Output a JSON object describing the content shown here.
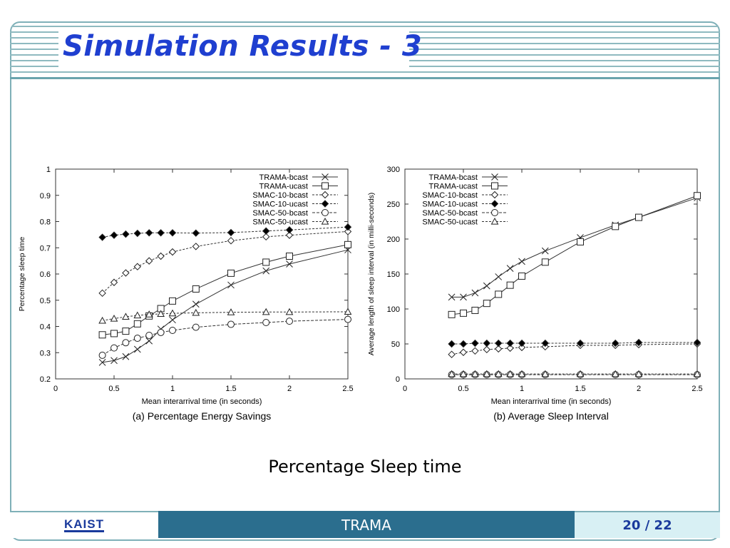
{
  "slide": {
    "title": "Simulation Results - 3",
    "caption": "Percentage Sleep time",
    "footer_logo": "KAIST",
    "footer_center": "TRAMA",
    "page_current": "20",
    "page_sep": " / ",
    "page_total": "22"
  },
  "chart_data": [
    {
      "type": "line",
      "caption": "(a) Percentage Energy Savings",
      "xlabel": "Mean interarrival time (in seconds)",
      "ylabel": "Percentage sleep time",
      "xlim": [
        0,
        2.5
      ],
      "ylim": [
        0.2,
        1.0
      ],
      "xticks": [
        0,
        0.5,
        1,
        1.5,
        2,
        2.5
      ],
      "yticks": [
        0.2,
        0.3,
        0.4,
        0.5,
        0.6,
        0.7,
        0.8,
        0.9,
        1
      ],
      "legend": "top-right",
      "grid": false,
      "series": [
        {
          "name": "TRAMA-bcast",
          "marker": "x",
          "dash": "",
          "x": [
            0.4,
            0.5,
            0.6,
            0.7,
            0.8,
            0.9,
            1.0,
            1.2,
            1.5,
            1.8,
            2.0,
            2.5
          ],
          "y": [
            0.263,
            0.27,
            0.285,
            0.313,
            0.345,
            0.39,
            0.425,
            0.485,
            0.558,
            0.612,
            0.638,
            0.692
          ]
        },
        {
          "name": "TRAMA-ucast",
          "marker": "square",
          "dash": "",
          "x": [
            0.4,
            0.5,
            0.6,
            0.7,
            0.8,
            0.9,
            1.0,
            1.2,
            1.5,
            1.8,
            2.0,
            2.5
          ],
          "y": [
            0.368,
            0.373,
            0.382,
            0.41,
            0.44,
            0.468,
            0.497,
            0.543,
            0.603,
            0.645,
            0.668,
            0.712
          ]
        },
        {
          "name": "SMAC-10-bcast",
          "marker": "diamond",
          "dash": "3,2",
          "x": [
            0.4,
            0.5,
            0.6,
            0.7,
            0.8,
            0.9,
            1.0,
            1.2,
            1.5,
            1.8,
            2.0,
            2.5
          ],
          "y": [
            0.527,
            0.568,
            0.604,
            0.628,
            0.65,
            0.668,
            0.684,
            0.705,
            0.727,
            0.742,
            0.748,
            0.762
          ]
        },
        {
          "name": "SMAC-10-ucast",
          "marker": "filled-diamond",
          "dash": "3,2",
          "x": [
            0.4,
            0.5,
            0.6,
            0.7,
            0.8,
            0.9,
            1.0,
            1.2,
            1.5,
            1.8,
            2.0,
            2.5
          ],
          "y": [
            0.74,
            0.748,
            0.752,
            0.755,
            0.757,
            0.757,
            0.757,
            0.756,
            0.758,
            0.764,
            0.768,
            0.779
          ]
        },
        {
          "name": "SMAC-50-bcast",
          "marker": "circle",
          "dash": "4,2",
          "x": [
            0.4,
            0.5,
            0.6,
            0.7,
            0.8,
            0.9,
            1.0,
            1.2,
            1.5,
            1.8,
            2.0,
            2.5
          ],
          "y": [
            0.29,
            0.318,
            0.338,
            0.355,
            0.366,
            0.377,
            0.385,
            0.397,
            0.408,
            0.415,
            0.42,
            0.427
          ]
        },
        {
          "name": "SMAC-50-ucast",
          "marker": "triangle",
          "dash": "3,2",
          "x": [
            0.4,
            0.5,
            0.6,
            0.7,
            0.8,
            0.9,
            1.0,
            1.2,
            1.5,
            1.8,
            2.0,
            2.5
          ],
          "y": [
            0.422,
            0.43,
            0.437,
            0.442,
            0.446,
            0.448,
            0.45,
            0.452,
            0.454,
            0.455,
            0.455,
            0.456
          ]
        }
      ]
    },
    {
      "type": "line",
      "caption": "(b) Average Sleep Interval",
      "xlabel": "Mean interarrival time (in seconds)",
      "ylabel": "Average length of sleep interval (in milli-seconds)",
      "xlim": [
        0,
        2.5
      ],
      "ylim": [
        0,
        300
      ],
      "xticks": [
        0,
        0.5,
        1,
        1.5,
        2,
        2.5
      ],
      "yticks": [
        0,
        50,
        100,
        150,
        200,
        250,
        300
      ],
      "legend": "top-left",
      "grid": false,
      "series": [
        {
          "name": "TRAMA-bcast",
          "marker": "x",
          "dash": "",
          "x": [
            0.4,
            0.5,
            0.6,
            0.7,
            0.8,
            0.9,
            1.0,
            1.2,
            1.5,
            1.8,
            2.0,
            2.5
          ],
          "y": [
            117,
            117,
            123,
            133,
            146,
            158,
            168,
            183,
            202,
            220,
            231,
            259
          ]
        },
        {
          "name": "TRAMA-ucast",
          "marker": "square",
          "dash": "",
          "x": [
            0.4,
            0.5,
            0.6,
            0.7,
            0.8,
            0.9,
            1.0,
            1.2,
            1.5,
            1.8,
            2.0,
            2.5
          ],
          "y": [
            92,
            94,
            98,
            108,
            121,
            134,
            147,
            167,
            196,
            218,
            231,
            262
          ]
        },
        {
          "name": "SMAC-10-bcast",
          "marker": "diamond",
          "dash": "3,2",
          "x": [
            0.4,
            0.5,
            0.6,
            0.7,
            0.8,
            0.9,
            1.0,
            1.2,
            1.5,
            1.8,
            2.0,
            2.5
          ],
          "y": [
            35,
            38,
            40,
            42,
            43,
            44,
            45,
            46,
            48,
            48,
            49,
            50
          ]
        },
        {
          "name": "SMAC-10-ucast",
          "marker": "filled-diamond",
          "dash": "3,2",
          "x": [
            0.4,
            0.5,
            0.6,
            0.7,
            0.8,
            0.9,
            1.0,
            1.2,
            1.5,
            1.8,
            2.0,
            2.5
          ],
          "y": [
            50,
            50,
            51,
            51,
            51,
            51,
            51,
            51,
            51,
            51,
            52,
            52
          ]
        },
        {
          "name": "SMAC-50-bcast",
          "marker": "circle",
          "dash": "4,2",
          "x": [
            0.4,
            0.5,
            0.6,
            0.7,
            0.8,
            0.9,
            1.0,
            1.2,
            1.5,
            1.8,
            2.0,
            2.5
          ],
          "y": [
            6,
            6,
            6,
            6,
            6,
            6,
            6,
            6,
            6,
            6,
            6,
            6
          ]
        },
        {
          "name": "SMAC-50-ucast",
          "marker": "triangle",
          "dash": "3,2",
          "x": [
            0.4,
            0.5,
            0.6,
            0.7,
            0.8,
            0.9,
            1.0,
            1.2,
            1.5,
            1.8,
            2.0,
            2.5
          ],
          "y": [
            7,
            7,
            7,
            7,
            7,
            7,
            7,
            7,
            7,
            7,
            7,
            7
          ]
        }
      ]
    }
  ]
}
